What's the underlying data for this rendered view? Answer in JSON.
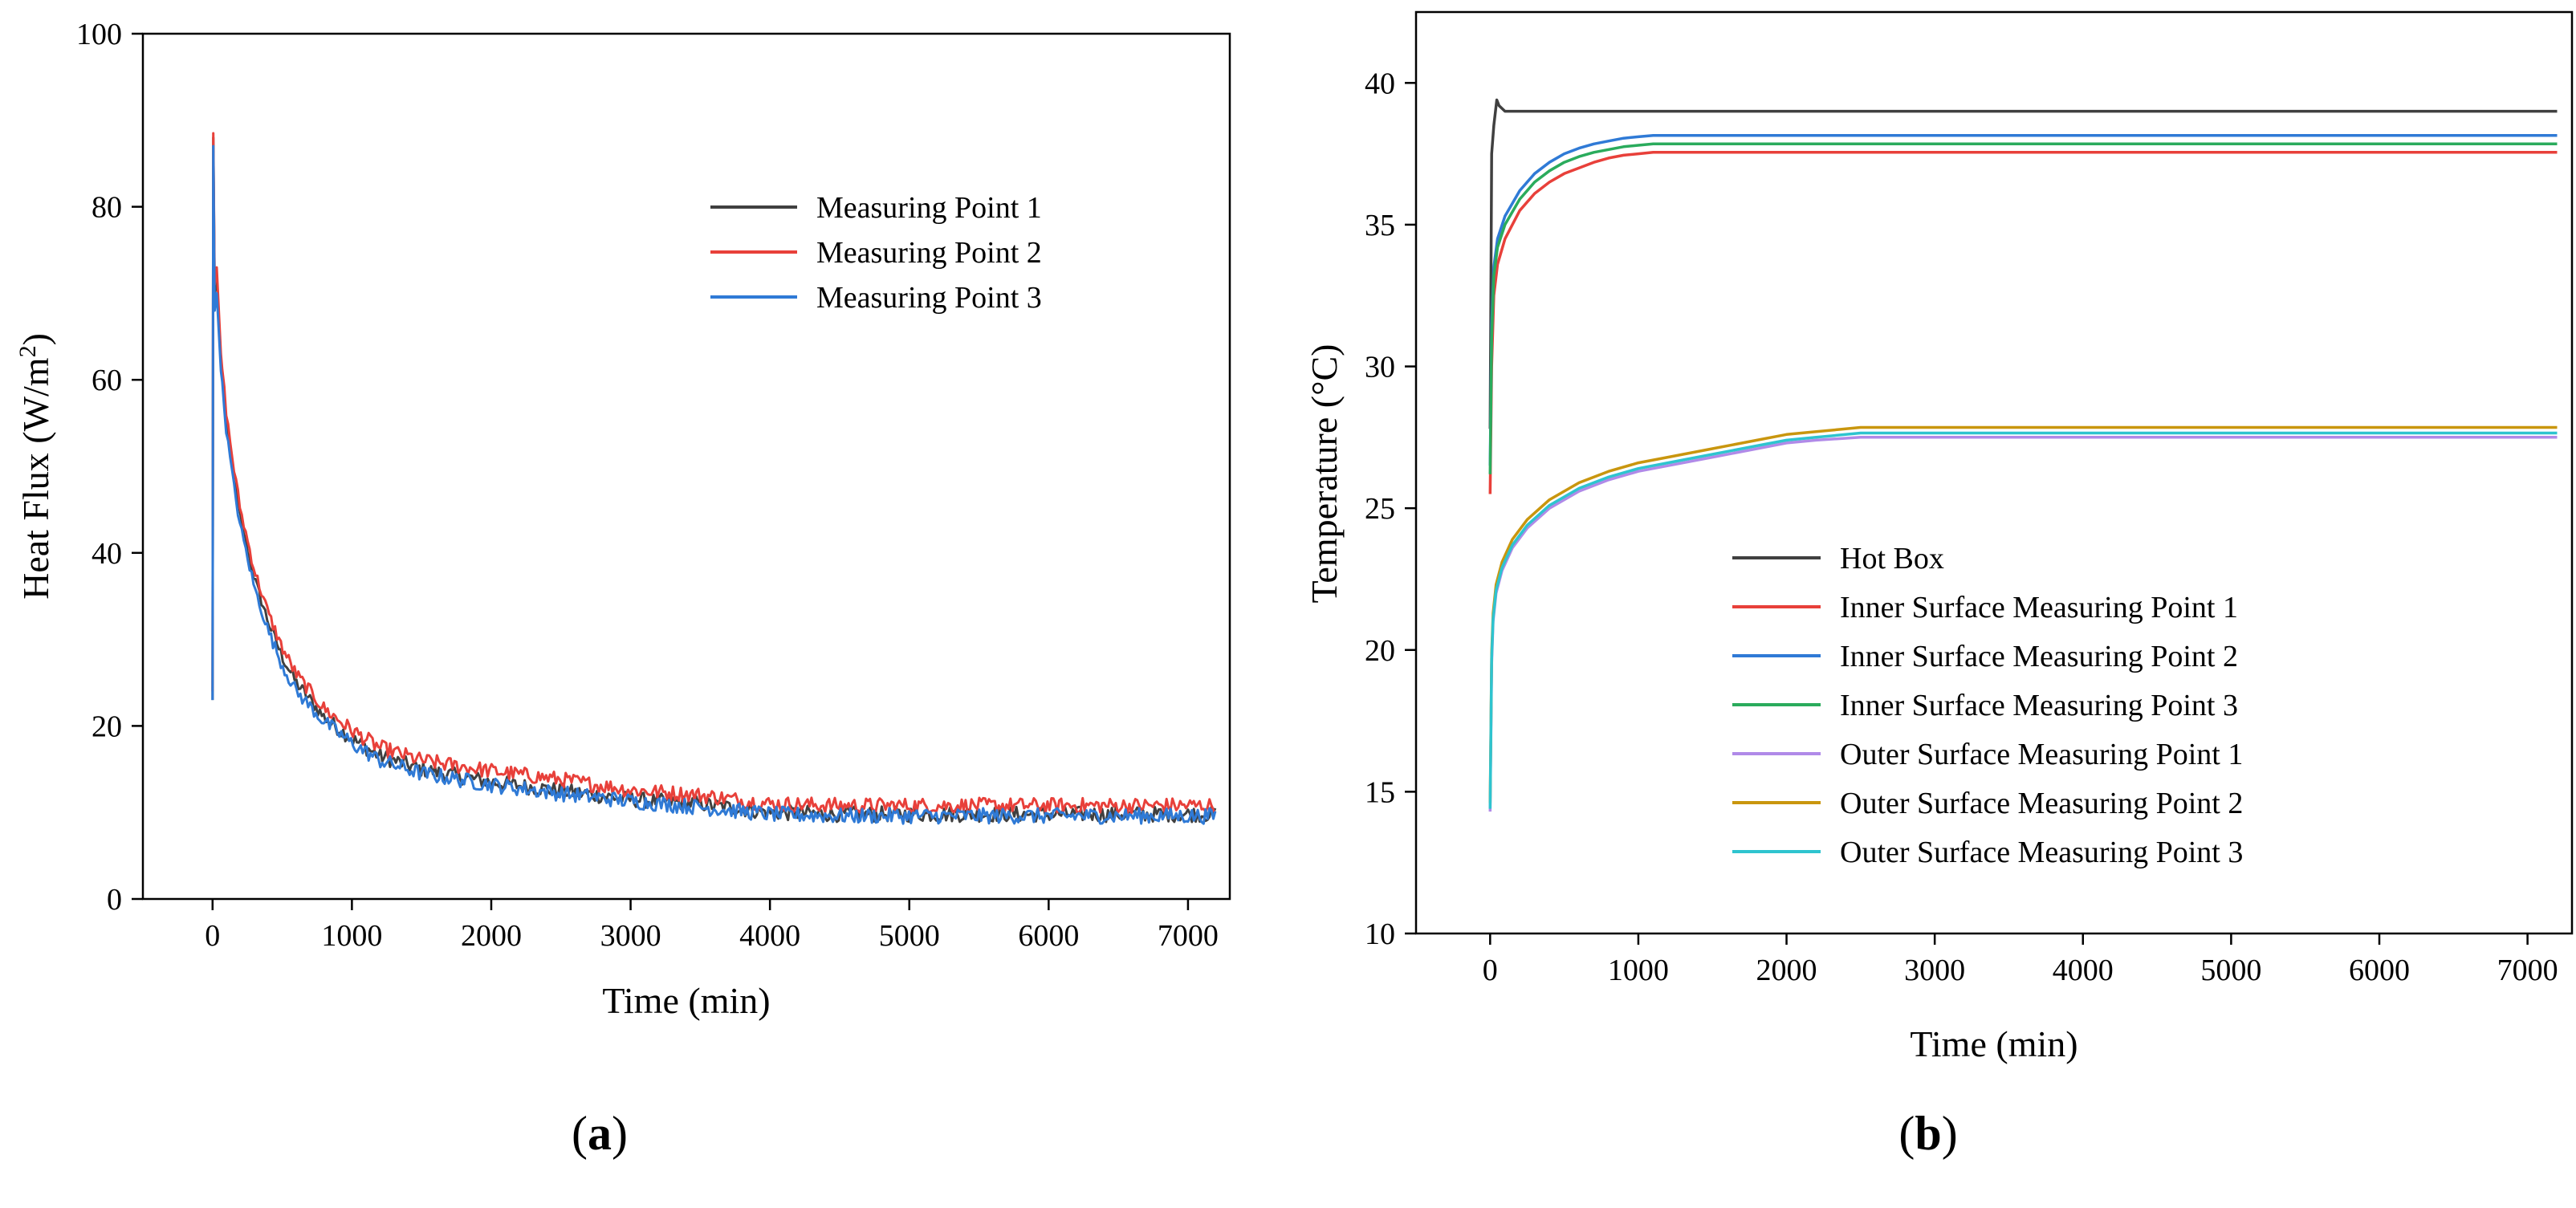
{
  "chart_data": [
    {
      "type": "line",
      "panel_label": "(a)",
      "panel_label_bold": "a",
      "xlabel": "Time (min)",
      "ylabel": "Heat Flux (W/m",
      "ylabel_superscript": "2",
      "ylabel_suffix": ")",
      "xlim": [
        -500,
        7300
      ],
      "ylim": [
        0,
        100
      ],
      "xticks": [
        0,
        1000,
        2000,
        3000,
        4000,
        5000,
        6000,
        7000
      ],
      "xtick_labels": [
        "0",
        "1000",
        "2000",
        "3000",
        "4000",
        "5000",
        "6000",
        "7000"
      ],
      "yticks": [
        0,
        20,
        40,
        60,
        80,
        100
      ],
      "ytick_labels": [
        "0",
        "20",
        "40",
        "60",
        "80",
        "100"
      ],
      "legend_position": "top-right",
      "noise_amplitude": 0.9,
      "series": [
        {
          "name": "Measuring Point 1",
          "color": "#404040",
          "x": [
            0,
            5,
            15,
            30,
            60,
            100,
            150,
            200,
            300,
            400,
            500,
            600,
            800,
            1000,
            1200,
            1500,
            2000,
            2500,
            3000,
            3500,
            4000,
            4500,
            5000,
            6000,
            7200
          ],
          "y": [
            23,
            88,
            70,
            72,
            62,
            55,
            49,
            44,
            37,
            32,
            28,
            25,
            21,
            18.5,
            16.5,
            15,
            13.5,
            12.5,
            11.5,
            11,
            10,
            9.8,
            9.8,
            9.8,
            9.8
          ]
        },
        {
          "name": "Measuring Point 2",
          "color": "#e8403a",
          "x": [
            0,
            5,
            15,
            30,
            60,
            100,
            150,
            200,
            300,
            400,
            500,
            600,
            800,
            1000,
            1200,
            1500,
            2000,
            2500,
            3000,
            3500,
            4000,
            4500,
            5000,
            6000,
            7200
          ],
          "y": [
            24,
            88.5,
            71,
            73,
            63,
            56,
            50,
            45,
            38,
            33,
            29,
            26,
            22,
            19.5,
            17.5,
            16,
            14.8,
            13.8,
            12.6,
            12,
            11,
            10.8,
            10.8,
            10.8,
            10.8
          ]
        },
        {
          "name": "Measuring Point 3",
          "color": "#2f7ad6",
          "x": [
            0,
            5,
            15,
            30,
            60,
            100,
            150,
            200,
            300,
            400,
            500,
            600,
            800,
            1000,
            1200,
            1500,
            2000,
            2500,
            3000,
            3500,
            4000,
            4500,
            5000,
            6000,
            7200
          ],
          "y": [
            23,
            87,
            68,
            70,
            61,
            54,
            48,
            43,
            36,
            31,
            27,
            24,
            20.5,
            18,
            16,
            14.5,
            13.2,
            12.2,
            11.3,
            10.6,
            9.8,
            9.6,
            9.6,
            9.6,
            9.6
          ]
        }
      ]
    },
    {
      "type": "line",
      "panel_label": "(b)",
      "panel_label_bold": "b",
      "xlabel": "Time (min)",
      "ylabel": "Temperature (°C)",
      "xlim": [
        -500,
        7300
      ],
      "ylim": [
        10,
        42.5
      ],
      "xticks": [
        0,
        1000,
        2000,
        3000,
        4000,
        5000,
        6000,
        7000
      ],
      "xtick_labels": [
        "0",
        "1000",
        "2000",
        "3000",
        "4000",
        "5000",
        "6000",
        "7000"
      ],
      "yticks": [
        10,
        15,
        20,
        25,
        30,
        35,
        40
      ],
      "ytick_labels": [
        "10",
        "15",
        "20",
        "25",
        "30",
        "35",
        "40"
      ],
      "legend_position": "bottom-center",
      "series": [
        {
          "name": "Hot Box",
          "color": "#404040",
          "x": [
            0,
            10,
            25,
            45,
            60,
            100,
            200,
            500,
            1000,
            2000,
            4000,
            7200
          ],
          "y": [
            27.8,
            37.5,
            38.5,
            39.4,
            39.2,
            39.0,
            39.0,
            39.0,
            39.0,
            39.0,
            39.0,
            39.0
          ]
        },
        {
          "name": "Inner Surface Measuring Point 1",
          "color": "#e8403a",
          "x": [
            0,
            10,
            25,
            50,
            100,
            200,
            300,
            400,
            500,
            600,
            700,
            800,
            900,
            1000,
            1100,
            1500,
            3000,
            7200
          ],
          "y": [
            25.5,
            30,
            32.5,
            33.6,
            34.5,
            35.5,
            36.1,
            36.5,
            36.8,
            37.0,
            37.2,
            37.35,
            37.45,
            37.5,
            37.55,
            37.55,
            37.55,
            37.55
          ]
        },
        {
          "name": "Inner Surface Measuring Point 2",
          "color": "#2f7ad6",
          "x": [
            0,
            10,
            25,
            50,
            100,
            200,
            300,
            400,
            500,
            600,
            700,
            800,
            900,
            1000,
            1100,
            1500,
            3000,
            7200
          ],
          "y": [
            26.5,
            31.5,
            33.5,
            34.5,
            35.3,
            36.2,
            36.8,
            37.2,
            37.5,
            37.7,
            37.85,
            37.95,
            38.05,
            38.1,
            38.15,
            38.15,
            38.15,
            38.15
          ]
        },
        {
          "name": "Inner Surface Measuring Point 3",
          "color": "#2aab5c",
          "x": [
            0,
            10,
            25,
            50,
            100,
            200,
            300,
            400,
            500,
            600,
            700,
            800,
            900,
            1000,
            1100,
            1500,
            3000,
            7200
          ],
          "y": [
            26.2,
            31,
            33.2,
            34.2,
            35.0,
            35.9,
            36.5,
            36.9,
            37.2,
            37.4,
            37.55,
            37.65,
            37.75,
            37.8,
            37.85,
            37.85,
            37.85,
            37.85
          ]
        },
        {
          "name": "Outer Surface Measuring Point 1",
          "color": "#b08ae8",
          "x": [
            0,
            10,
            20,
            40,
            80,
            150,
            250,
            400,
            600,
            800,
            1000,
            1200,
            1500,
            1800,
            2000,
            2200,
            2500,
            3000,
            7200
          ],
          "y": [
            14.3,
            19.5,
            21.0,
            22.0,
            22.8,
            23.6,
            24.3,
            25.0,
            25.6,
            26.0,
            26.3,
            26.5,
            26.8,
            27.1,
            27.3,
            27.4,
            27.5,
            27.5,
            27.5
          ]
        },
        {
          "name": "Outer Surface Measuring Point 2",
          "color": "#c9960e",
          "x": [
            0,
            10,
            20,
            40,
            80,
            150,
            250,
            400,
            600,
            800,
            1000,
            1200,
            1500,
            1800,
            2000,
            2200,
            2500,
            3000,
            7200
          ],
          "y": [
            14.6,
            19.9,
            21.3,
            22.3,
            23.1,
            23.9,
            24.6,
            25.3,
            25.9,
            26.3,
            26.6,
            26.8,
            27.1,
            27.4,
            27.6,
            27.7,
            27.85,
            27.85,
            27.85
          ]
        },
        {
          "name": "Outer Surface Measuring Point 3",
          "color": "#2ec4cf",
          "x": [
            0,
            10,
            20,
            40,
            80,
            150,
            250,
            400,
            600,
            800,
            1000,
            1200,
            1500,
            1800,
            2000,
            2200,
            2500,
            3000,
            7200
          ],
          "y": [
            14.4,
            19.7,
            21.1,
            22.1,
            22.9,
            23.7,
            24.4,
            25.1,
            25.7,
            26.1,
            26.4,
            26.6,
            26.9,
            27.2,
            27.4,
            27.5,
            27.65,
            27.65,
            27.65
          ]
        }
      ]
    }
  ]
}
